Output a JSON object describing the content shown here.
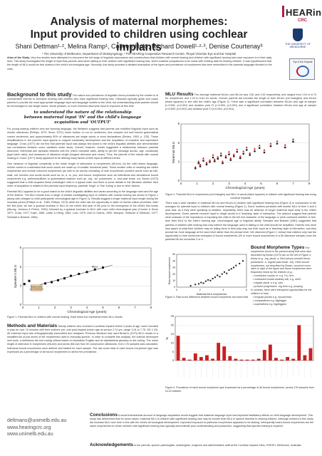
{
  "header": {
    "title_line1": "Analysis of maternal morphemes:",
    "title_line2": "Input provided to children using cochlear implants",
    "authors": "Shani Dettman¹·², Melina Ramp¹, Colleen Holt¹, Richard Dowell¹·²·³, Denise Courtenay³",
    "affiliations": "¹ The University of Melbourne, Department of Otolaryngology, ² The HEARing Cooperative Research Centre, ³Royal Victorian Eye and Ear Hospital",
    "logos": {
      "hearing_word": "HEARing",
      "crc_word": "CRC",
      "university_name": "THE UNIVERSITY OF MELBOURNE",
      "hospital_name": "Eye & Ear Hospital"
    }
  },
  "aims": {
    "label": "Aims of the Study.",
    "text": " Very few studies have attempted to document the full range of linguistic expressions and constructions that children with normal hearing and children with significant hearing loss have exposure to in their daily lives. This study investigated the length of input that parents used when talking to their children with significant hearing loss, which enabled comparisons to be made with existing data for hearing children. It was hypothesized that the length of MLU would be tied closely to the child's chronological age. Secondly, this study provided a detailed description of the types and prevalence of morphemes that were embedded in the parental language directed to the child."
  },
  "background": {
    "heading": "Background to this study",
    "p1": "The nature and prevalence of linguistic forms provided by the mother is of considerable interest to clinicians working with children who have significant hearing loss. Clinicians typically guide and coach parents to provide the most appropriate language input and language models to the child, but understanding what parents should be encouraged to use single words, whole phrases, or more enriched discourse input is unproven at this time.",
    "callout_line1": "to understand the nature of the relationship",
    "callout_line2": "between maternal input 'IN' and the child's language",
    "callout_line3": "acquisition and 'OUTPUT'",
    "p2": "For young hearing children who are learning language, the literature suggests that parents use modified linguistic input such as shorter utterances (Phillips, 1973; Snow, 1972), fewer broken or run on sentences, less complex but well formed grammatical correct sentences, and approximately 50% of utterances are single words or short declaratives (Devies, 1993, p. 233). These simplifications in the parent's input appear to support vocabulary development and the acquisition of receptive and expressive language. Cross (1977) did not find that parental input was always fine-tuned to the child's linguistic abilities and demonstrated low correlations between some variables under study. Overall, however, results suggested a relationship between parental discourse, referential and syntactic features with the child's receptive skills, ability to get the message across, age, vocabulary (type-token ratio), and measures of utterance length (longest utterance and mean). Thus, the parents of the infants with normal hearing in Cross' (1977) study appeared to be altering many facets of their input at different times.",
    "p3": "One measure of linguistic complexity is the mean length of utterances in morphemes (MLUm). As the child learns language, he/she comes to understand that some words are made up of smaller functional parts. These smaller units of meaning are called morphemes and include unbound morphemes (as with to as words) consisting of sole morphemes (content words such as ball, walk, cat, function and social words such as no, a, to, you, and bound morphemes such as inflectional and derivational bound morphemes e.g. prefixes/suffixes or grammatical markers such as -ing, -ed, possessive -s, and past tense -ed. Brown (1973) suggested that a child acquires these meaningful units in a typical order and there is some debate in the literature whether their order of acquisition is related to the parental input frequency, parental 'rough' or 'fine' tuning or due to other factors.",
    "p4": "Parental MLU appears to be a good match to the child's linguistic abilities and varies according to the language used and the age of the listener. The MLU results from a range of studies investigating input to children with normal hearing are shown in Figure 1 (along with changes to child participants' chronological age in Figure 1). Results suggest a longer maternal input length during the neonatal period (Phillips et al., 1983; Phillips, 1973) while the child has the opportunity to listen to his/her native phonetics. After the first year, we see a gradual increase in MLU to the child's first year of life prior to the emergence of the child's first words (Murray, Johnson & Peters, 1990), followed by a gradual increase in MLU with each child chronological year (Cromer & Snow 1977; Cross, 1977; Kaye, 1980; Leslie & Kleeg, 1982; Lord, 1975; Ueki in Owens, 1992; Newport, Gleitman & Gleitman, 1977; Seewald & Bracket, 1984)."
  },
  "fig1": {
    "caption": "Figure 1. Parental MLU to children with normal hearing. Each black box represents mean MLU results.",
    "label_mlu": "MLU",
    "label_mother": "Mother's words",
    "label_mother2": "prior to first words"
  },
  "methods": {
    "heading": "Methods and Materials",
    "text": " Twenty children who received a cochlear implant before 4 years of age, were recorded in play for over 10 minutes with their mothers pre- and post-implant (mean age at service 2.74 yrs, range 1.04 to 7.75, SD 1.15). All maternal input was orthographically transcribed and analysed. Previous literature had used Brown's (1973) MLU results to a simplified list of just seven of the morphemes used in everyday speech. In order to complete this analysis, the authors developed new tools, a definitions list and coding criteria based on Australian English and an alphabetical glossary to aid coding. The mean length of utterance in morphemes (MLUm) and words (MLUw) from 50 consecutive utterances, from 176 samples was calculated. Individual bound morphemes were defined and totaled for each sample. The raw score total of each bound morpheme type was expressed as a percentage of all bound morphemes to derive the prevalence."
  },
  "results": {
    "heading": "MLU Results",
    "p1": " The average maternal MLUm and MLUw was 3.81 and 3.52 respectively, and ranged from 1.04 to 6.74 for morphemes and 1.24 to 6.64 for words. Overall, parents did increase the length of their MLUm (red triangles) and MLUw (black squares) in line with the child's age (Figure 2). There was a significant correlation between MLUm and age at sample (r=0.551, p<0.001) and duration post CI (r=0.594, p<0.001) and a significant correlation between MLUw and age at sample (r=0.509, p<0.001) and duration post CI (r=0.544, p<0.001).",
    "fig2_caption": "Figure 2. Parental MLU in morphemes (red triangles) and MLU in words (black squares) to children with significant hearing loss using cochlear implants.",
    "p2": "There was a wide variation in maternal MLUm and MLUw to children with significant hearing loss (Figure 2) in comparison to the averages for parental input to children with normal hearing (Figure 1). Some mothers persisted with shorter MLU to their 3 and 4 year olds, as if they were speaking to toddlers. Importantly, there was an absence of longer maternal input early in the child's development. Some parents reduced input to single words in a 'teaching' style of interaction. The authors suggest that parents were unaware of the importance of exposing the child to the full rich character of the language or were confused whether to fine-tune their MLU to the child's hearing age, chronological age or linguistic ability. Seewald and Bracket (1981) suggested that parents of children with hearing loss may believe the language used in talking to the child should be simplified. Parents who were less aware of what their children may be telling them in their play may use their input as a 'teaching' style of interaction, and they provide far more language at the word level rather than the phrase level. We observed (Figure 2, below) that children only had the opportunity to hear numerous examples of bound morphemes (20 or more bound morphemes in a 50 utterance sample) once the parental MLUm exceeded 3 or 4."
  },
  "bound": {
    "heading": "Bound Morpheme Types",
    "text": " The morphemes found in the present study that were also described by Brown (1973) are on the left of Figure 4, below (e.g. -ing, plural -s, third person present tense, possessive -s, regular past tense -ed). Other bound morphemes, not described by Brown, occurred more often to right of the figure and these morphemes were frequently heard by the children (e.g.:",
    "items": [
      "• contracted copula 'm' e.g. I'm, he's",
      "• contracted modal auxiliary will, e.g. she'll",
      "• regular plural -s e.g. cars",
      "• present progressive -ing form e.g. jumping"
    ],
    "text2": "In contrast, there were infrequent opportunities for the children to hear:",
    "items2": [
      "• irregular plurals e.g. mouse/mice",
      "• comparatives e.g. big/bigger",
      "• superlatives e.g. big/biggest"
    ],
    "fig3_caption": "Figure 3. Raw score difference between bound morpheme and word total",
    "fig4_caption": "Figure 4. Prevalence of each bound morpheme type expressed as a percentage of all bound morphemes, across 176 samples from N=20 children."
  },
  "footer": {
    "emails": [
      "deltmans@unimelb.edu.au",
      "www.hearingcrc.org",
      "www.unimelb.edu.au"
    ],
    "conclusions_label": "Conclusions",
    "conclusions_text": " A social interactionist account of language acquisition would suggest that maternal language input has important facilitatory effects on child language development. This study has determined that for some cases, maternal MLU to children with significant hearing loss may be shorter than MLU in speech directed to hearing children. Although mothers in this study did increase MLU over time in line with the child's chronological development, important exposure to particular morphemes appeared to be lacking. Infrequently heard bound morphemes are the same morphemes for which children with significant hearing loss typically demonstrate poor understanding and production, suggesting that specific training is required.",
    "ack_label": "Acknowledgements",
    "ack_text": " to the parents, speech pathologists, audiologists, surgeons and administrative staff at the Cochlear Implant Clinic, RVEEH, Melbourne, Australia."
  },
  "chart_data": [
    {
      "type": "scatter",
      "id": "figure-1",
      "title": "",
      "xlabel": "Chronological Age (years)",
      "ylabel": "Speaker's MLU",
      "xlim": [
        0,
        8
      ],
      "ylim": [
        0,
        9
      ],
      "xticks": [
        0,
        1,
        2,
        3,
        4,
        5,
        6,
        7,
        8
      ],
      "yticks": [
        0,
        3,
        6,
        9
      ],
      "series": [
        {
          "points": [
            [
              0.1,
              3.3
            ],
            [
              0.4,
              3.8
            ],
            [
              0.7,
              2.8
            ],
            [
              1.0,
              3.0
            ],
            [
              1.4,
              3.4
            ],
            [
              1.8,
              3.6
            ],
            [
              2.2,
              3.9
            ],
            [
              2.6,
              4.2
            ],
            [
              3.0,
              4.6
            ],
            [
              3.5,
              4.9
            ],
            [
              4.0,
              5.2
            ],
            [
              4.5,
              5.6
            ],
            [
              5.0,
              5.9
            ]
          ]
        }
      ],
      "trend": [
        [
          0.8,
          3.0
        ],
        [
          5.6,
          6.3
        ]
      ]
    },
    {
      "type": "scatter",
      "id": "figure-2",
      "title": "",
      "xlabel": "Chronological Age (years)",
      "ylabel": "Maternal MLU",
      "xlim": [
        0,
        8
      ],
      "ylim": [
        0,
        9
      ],
      "xticks": [
        0,
        1,
        2,
        3,
        4,
        5,
        6,
        7,
        8
      ],
      "yticks": [
        0,
        3,
        6,
        9
      ],
      "series": [
        {
          "name": "MLUm",
          "color": "#cc1f1f",
          "points": [
            [
              0.9,
              2.2
            ],
            [
              1.1,
              3.1
            ],
            [
              1.2,
              2.6
            ],
            [
              1.4,
              3.6
            ],
            [
              1.6,
              2.9
            ],
            [
              1.8,
              3.3
            ],
            [
              2.0,
              4.1
            ],
            [
              2.1,
              3.4
            ],
            [
              2.3,
              3.8
            ],
            [
              2.5,
              4.4
            ],
            [
              2.6,
              3.1
            ],
            [
              2.8,
              4.0
            ],
            [
              3.0,
              4.6
            ],
            [
              3.1,
              3.6
            ],
            [
              3.3,
              4.2
            ],
            [
              3.5,
              5.0
            ],
            [
              3.7,
              3.9
            ],
            [
              3.9,
              4.7
            ],
            [
              4.1,
              5.3
            ],
            [
              4.3,
              4.4
            ],
            [
              4.6,
              5.1
            ],
            [
              4.9,
              5.6
            ],
            [
              5.2,
              4.9
            ],
            [
              5.6,
              5.9
            ],
            [
              6.0,
              6.3
            ],
            [
              6.5,
              5.7
            ],
            [
              7.0,
              6.6
            ]
          ]
        },
        {
          "name": "MLUw",
          "color": "#222222",
          "points": [
            [
              0.9,
              2.0
            ],
            [
              1.1,
              2.8
            ],
            [
              1.2,
              2.3
            ],
            [
              1.4,
              3.2
            ],
            [
              1.6,
              2.6
            ],
            [
              1.8,
              3.0
            ],
            [
              2.0,
              3.7
            ],
            [
              2.1,
              3.1
            ],
            [
              2.3,
              3.5
            ],
            [
              2.5,
              4.0
            ],
            [
              2.6,
              2.8
            ],
            [
              2.8,
              3.7
            ],
            [
              3.0,
              4.2
            ],
            [
              3.1,
              3.3
            ],
            [
              3.3,
              3.9
            ],
            [
              3.5,
              4.6
            ],
            [
              3.7,
              3.6
            ],
            [
              3.9,
              4.3
            ],
            [
              4.1,
              4.9
            ],
            [
              4.3,
              4.1
            ],
            [
              4.6,
              4.7
            ],
            [
              4.9,
              5.2
            ],
            [
              5.2,
              4.5
            ],
            [
              5.6,
              5.5
            ],
            [
              6.0,
              5.9
            ],
            [
              6.5,
              5.3
            ],
            [
              7.0,
              6.2
            ]
          ]
        }
      ]
    },
    {
      "type": "scatter",
      "id": "figure-3",
      "title": "",
      "xlabel": "Maternal MLU morphemes",
      "ylabel": "Raw bound morphemes",
      "xlim": [
        0,
        6
      ],
      "ylim": [
        0,
        50
      ],
      "xticks": [
        0,
        2,
        4,
        6
      ],
      "yticks": [
        0,
        10,
        20,
        30,
        40,
        50
      ],
      "series": [
        {
          "points": [
            [
              1.2,
              2
            ],
            [
              1.6,
              4
            ],
            [
              1.9,
              5
            ],
            [
              2.1,
              7
            ],
            [
              2.3,
              6
            ],
            [
              2.5,
              9
            ],
            [
              2.7,
              11
            ],
            [
              2.9,
              10
            ],
            [
              3.1,
              13
            ],
            [
              3.3,
              15
            ],
            [
              3.5,
              18
            ],
            [
              3.7,
              16
            ],
            [
              3.9,
              20
            ],
            [
              4.1,
              23
            ],
            [
              4.3,
              21
            ],
            [
              4.5,
              26
            ],
            [
              4.7,
              28
            ],
            [
              4.9,
              30
            ],
            [
              5.1,
              33
            ],
            [
              5.4,
              36
            ],
            [
              5.7,
              40
            ]
          ]
        }
      ]
    },
    {
      "type": "bar",
      "id": "figure-4",
      "title": "",
      "xlabel": "",
      "ylabel": "%",
      "ylim": [
        0,
        25
      ],
      "yticks": [
        0,
        5,
        10,
        15,
        20,
        25
      ],
      "values": [
        14,
        1.5,
        0.5,
        4,
        2,
        3,
        1,
        10,
        8,
        2.5,
        1,
        0.5,
        0.5,
        0.5,
        1,
        6,
        9,
        1.5,
        0.5,
        2,
        1,
        20,
        3,
        7
      ]
    }
  ]
}
